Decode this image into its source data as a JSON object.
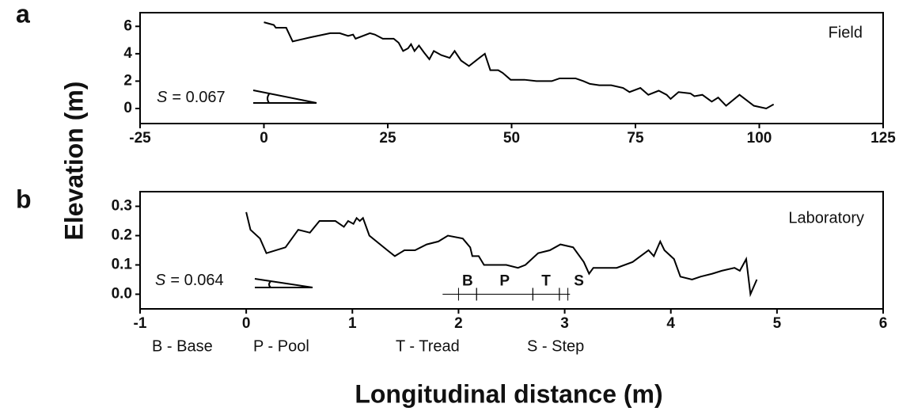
{
  "chart_data": [
    {
      "type": "line",
      "panel": "a",
      "annotation": "Field",
      "color": "#000000",
      "slope_symbol": "S",
      "slope_value": "= 0.067",
      "x": [
        0,
        2,
        2.4,
        4.5,
        5.8,
        9.4,
        13.4,
        15.3,
        17,
        18,
        18.5,
        21.4,
        22.4,
        24,
        26.2,
        27.2,
        28.1,
        29.1,
        29.7,
        30.4,
        31.3,
        32.3,
        33.4,
        34.3,
        35.8,
        37.5,
        38.5,
        39.8,
        41.4,
        43.5,
        44.6,
        45.7,
        47.3,
        48.2,
        49.8,
        52.6,
        55,
        58.1,
        59.7,
        62.9,
        64.5,
        65.8,
        67.7,
        70.1,
        72.5,
        73.8,
        76,
        77.6,
        79.7,
        81.3,
        82.1,
        83.7,
        86.1,
        86.9,
        88.5,
        90.4,
        91.7,
        93.3,
        96,
        98.9,
        101.4,
        102.9
      ],
      "values": [
        6.3,
        6.1,
        5.9,
        5.9,
        4.9,
        5.2,
        5.5,
        5.5,
        5.3,
        5.4,
        5.1,
        5.5,
        5.4,
        5.1,
        5.1,
        4.8,
        4.2,
        4.4,
        4.7,
        4.2,
        4.6,
        4.1,
        3.6,
        4.2,
        3.9,
        3.7,
        4.2,
        3.5,
        3.1,
        3.7,
        4.0,
        2.8,
        2.8,
        2.6,
        2.1,
        2.1,
        2.0,
        2.0,
        2.2,
        2.2,
        2.0,
        1.8,
        1.7,
        1.7,
        1.5,
        1.2,
        1.5,
        1.0,
        1.3,
        1.0,
        0.7,
        1.2,
        1.1,
        0.9,
        1.0,
        0.5,
        0.8,
        0.2,
        1.0,
        0.2,
        0.0,
        0.3
      ],
      "xlim": [
        -25,
        125
      ],
      "xticks": [
        -25,
        0,
        25,
        50,
        75,
        100,
        125
      ],
      "ylim": [
        -1.1,
        7
      ],
      "yticks": [
        0,
        2,
        4,
        6
      ]
    },
    {
      "type": "line",
      "panel": "b",
      "annotation": "Laboratory",
      "color": "#000000",
      "slope_symbol": "S",
      "slope_value": "= 0.064",
      "x": [
        0,
        0.04,
        0.13,
        0.19,
        0.37,
        0.49,
        0.6,
        0.69,
        0.84,
        0.92,
        0.96,
        1.01,
        1.04,
        1.07,
        1.1,
        1.16,
        1.33,
        1.4,
        1.49,
        1.59,
        1.7,
        1.81,
        1.9,
        2.04,
        2.11,
        2.13,
        2.19,
        2.24,
        2.45,
        2.56,
        2.63,
        2.75,
        2.86,
        2.96,
        3.08,
        3.18,
        3.23,
        3.27,
        3.49,
        3.64,
        3.79,
        3.84,
        3.9,
        3.94,
        4.03,
        4.09,
        4.2,
        4.28,
        4.39,
        4.48,
        4.6,
        4.65,
        4.71,
        4.75,
        4.81
      ],
      "values": [
        0.28,
        0.22,
        0.19,
        0.14,
        0.16,
        0.22,
        0.21,
        0.25,
        0.25,
        0.23,
        0.25,
        0.24,
        0.26,
        0.25,
        0.26,
        0.2,
        0.15,
        0.13,
        0.15,
        0.15,
        0.17,
        0.18,
        0.2,
        0.19,
        0.16,
        0.13,
        0.13,
        0.1,
        0.1,
        0.09,
        0.1,
        0.14,
        0.15,
        0.17,
        0.16,
        0.11,
        0.07,
        0.09,
        0.09,
        0.11,
        0.15,
        0.13,
        0.18,
        0.15,
        0.12,
        0.06,
        0.05,
        0.06,
        0.07,
        0.08,
        0.09,
        0.08,
        0.12,
        0.0,
        0.05
      ],
      "xlim": [
        -1,
        6
      ],
      "xticks": [
        -1,
        0,
        1,
        2,
        3,
        4,
        5,
        6
      ],
      "ylim": [
        -0.05,
        0.35
      ],
      "yticks": [
        {
          "value": 0,
          "label": "0.0"
        },
        0.1,
        0.2,
        0.3
      ],
      "segments": [
        {
          "label": "B",
          "start": 2.0,
          "end": 2.17
        },
        {
          "label": "P",
          "start": 2.17,
          "end": 2.7
        },
        {
          "label": "T",
          "start": 2.7,
          "end": 2.95
        },
        {
          "label": "S",
          "start": 2.95,
          "end": 3.03
        }
      ],
      "legend_items": [
        "B - Base",
        "P - Pool",
        "T - Tread",
        "S - Step"
      ]
    }
  ],
  "ylabel": "Elevation (m)",
  "xlabel": "Longitudinal distance (m)"
}
